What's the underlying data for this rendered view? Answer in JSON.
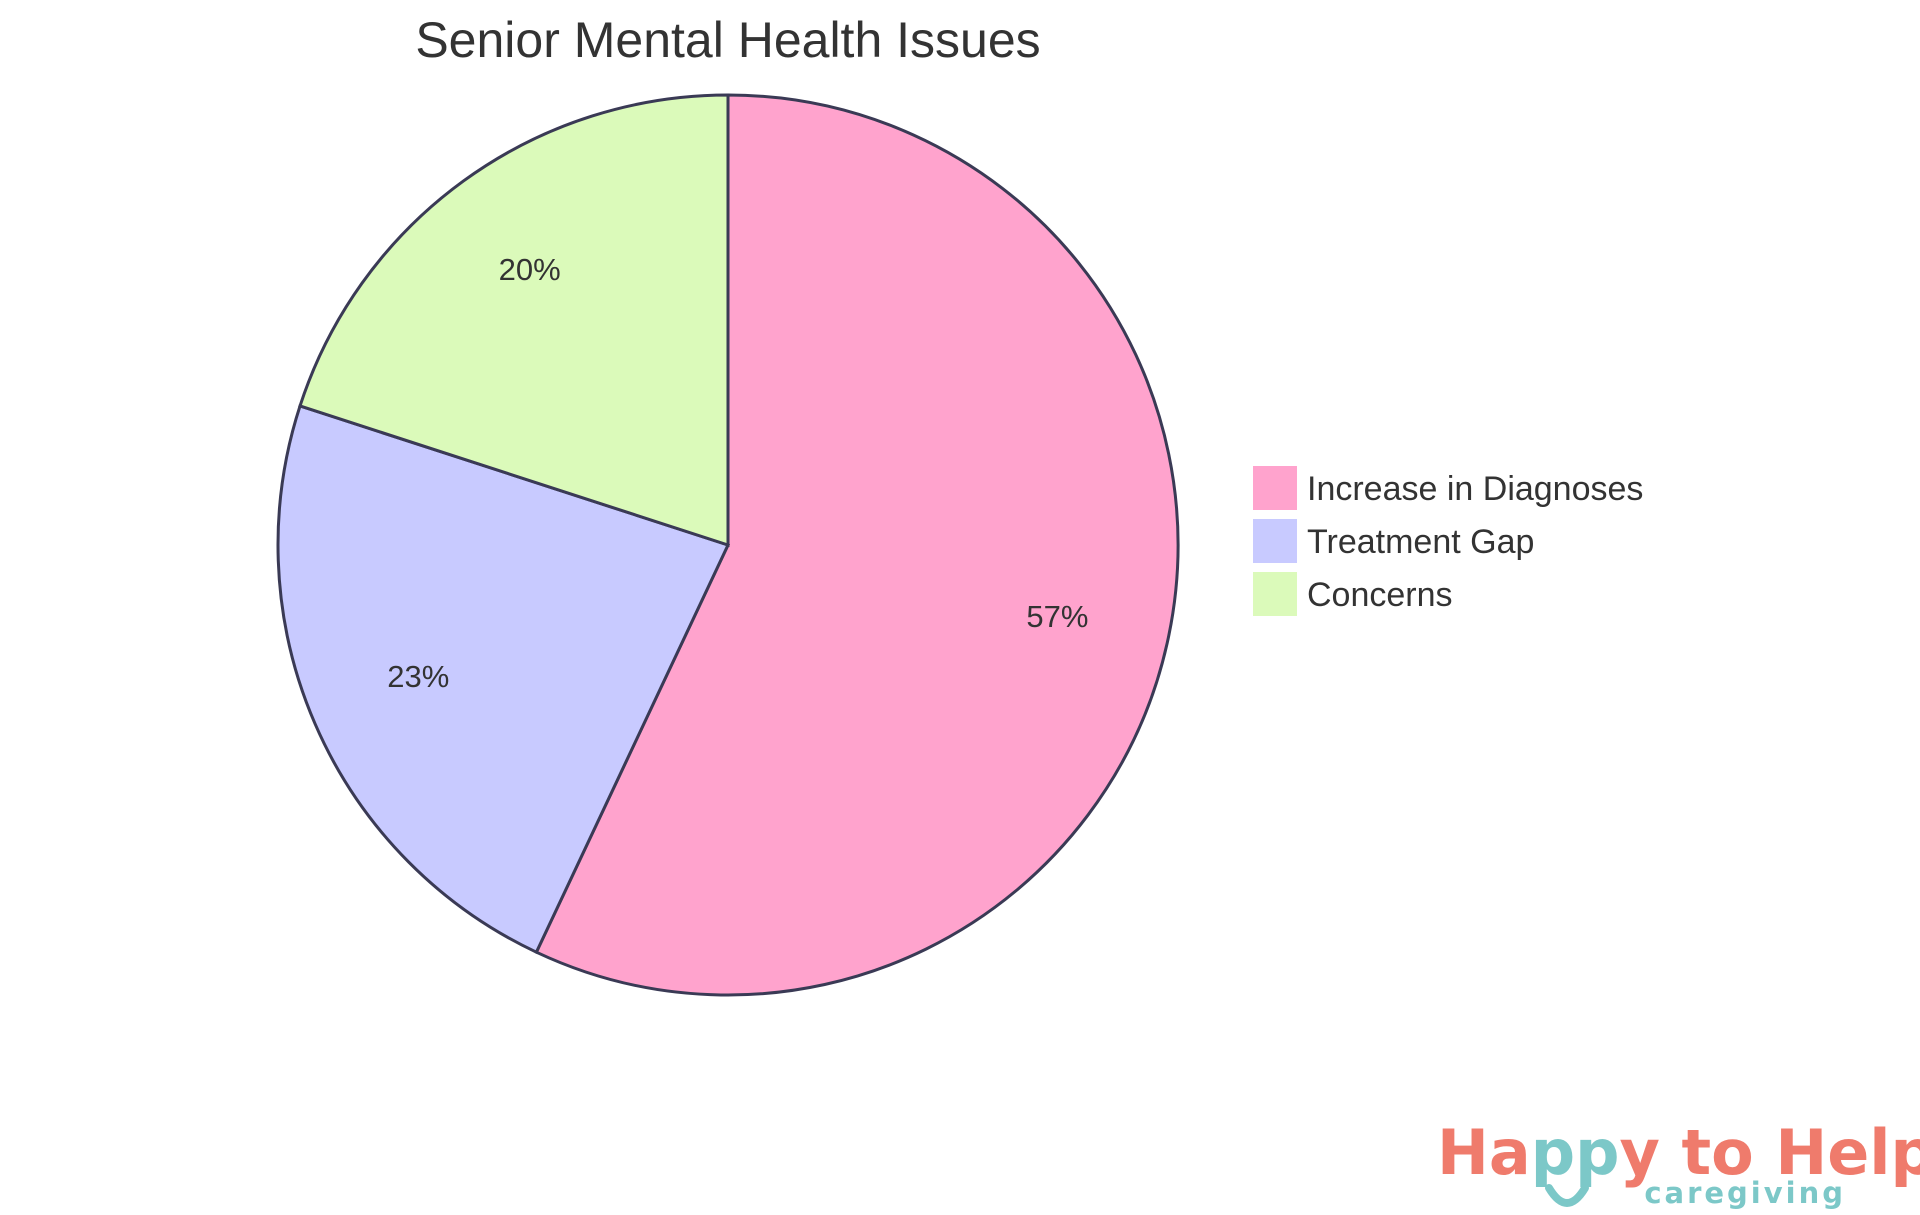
{
  "chart_data": {
    "type": "pie",
    "title": "Senior Mental Health Issues",
    "start": "top, clockwise",
    "legend_position": "right",
    "slices": [
      {
        "label": "Increase in Diagnoses",
        "value": 57,
        "display": "57%",
        "color": "#FFA3CD"
      },
      {
        "label": "Treatment Gap",
        "value": 23,
        "display": "23%",
        "color": "#C8CAFF"
      },
      {
        "label": "Concerns",
        "value": 20,
        "display": "20%",
        "color": "#DBFABA"
      }
    ],
    "stroke_color": "#3A3A55"
  },
  "logo": {
    "text_part1": "Ha",
    "text_part2": "pp",
    "text_part3": "y to Help",
    "subtitle": "caregiving",
    "primary_color": "#EF7B6C",
    "accent_color": "#7CC8C8"
  }
}
